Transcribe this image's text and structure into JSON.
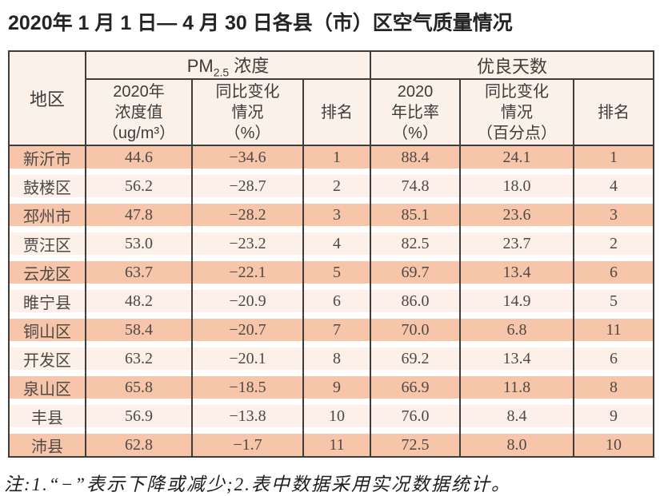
{
  "title": "2020年 1 月 1 日— 4 月 30 日各县（市）区空气质量情况",
  "table": {
    "header": {
      "region": "地区",
      "pm_group": {
        "prefix": "PM",
        "sub": "2.5",
        "suffix": " 浓度"
      },
      "good_days_group": "优良天数",
      "sub_headers": [
        "2020年\n浓度值\n（ug/m³）",
        "同比变化\n情况\n（%）",
        "排名",
        "2020\n年比率\n（%）",
        "同比变化\n情况\n（百分点）",
        "排名"
      ]
    },
    "rows": [
      {
        "region": "新沂市",
        "values": [
          "44.6",
          "−34.6",
          "1",
          "88.4",
          "24.1",
          "1"
        ]
      },
      {
        "region": "鼓楼区",
        "values": [
          "56.2",
          "−28.7",
          "2",
          "74.8",
          "18.0",
          "4"
        ]
      },
      {
        "region": "邳州市",
        "values": [
          "47.8",
          "−28.2",
          "3",
          "85.1",
          "23.6",
          "3"
        ]
      },
      {
        "region": "贾汪区",
        "values": [
          "53.0",
          "−23.2",
          "4",
          "82.5",
          "23.7",
          "2"
        ]
      },
      {
        "region": "云龙区",
        "values": [
          "63.7",
          "−22.1",
          "5",
          "69.7",
          "13.4",
          "6"
        ]
      },
      {
        "region": "睢宁县",
        "values": [
          "48.2",
          "−20.9",
          "6",
          "86.0",
          "14.9",
          "5"
        ]
      },
      {
        "region": "铜山区",
        "values": [
          "58.4",
          "−20.7",
          "7",
          "70.0",
          "6.8",
          "11"
        ]
      },
      {
        "region": "开发区",
        "values": [
          "63.2",
          "−20.1",
          "8",
          "69.2",
          "13.4",
          "6"
        ]
      },
      {
        "region": "泉山区",
        "values": [
          "65.8",
          "−18.5",
          "9",
          "66.9",
          "11.8",
          "8"
        ]
      },
      {
        "region": "丰县",
        "values": [
          "56.9",
          "−13.8",
          "10",
          "76.0",
          "8.4",
          "9"
        ]
      },
      {
        "region": "沛县",
        "values": [
          "62.8",
          "−1.7",
          "11",
          "72.5",
          "8.0",
          "10"
        ]
      }
    ]
  },
  "note": "注:1.“−”表示下降或减少;2.表中数据采用实况数据统计。",
  "colors": {
    "band_dark": "#f7c5aa",
    "band_light": "#fcf0e8",
    "header_bg": "#fcf1e8",
    "border": "#3d3d3d"
  }
}
